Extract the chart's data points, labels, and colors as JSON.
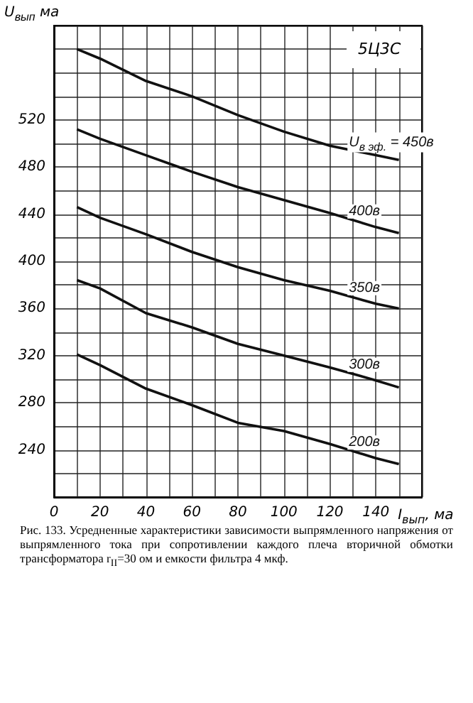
{
  "chart_data": {
    "type": "line",
    "xlabel": "I$_{вып}$, ма",
    "ylabel": "U$_{вып}$ ма",
    "x": [
      10,
      20,
      40,
      60,
      80,
      100,
      120,
      140,
      150
    ],
    "series": [
      {
        "name": "U$_{в эф.}$ = 450в",
        "color": "#111111",
        "values": [
          580,
          572,
          553,
          540,
          524,
          510,
          498,
          490,
          486
        ]
      },
      {
        "name": "400в",
        "color": "#111111",
        "values": [
          512,
          504,
          490,
          476,
          463,
          452,
          441,
          429,
          424
        ]
      },
      {
        "name": "350в",
        "color": "#111111",
        "values": [
          446,
          437,
          423,
          408,
          395,
          384,
          375,
          364,
          360
        ]
      },
      {
        "name": "300в",
        "color": "#111111",
        "values": [
          384,
          377,
          356,
          344,
          330,
          320,
          310,
          299,
          293
        ]
      },
      {
        "name": "200в",
        "color": "#111111",
        "values": [
          321,
          312,
          292,
          278,
          263,
          256,
          245,
          233,
          228
        ]
      }
    ],
    "xlim": [
      0,
      160
    ],
    "xticks": [
      0,
      {
        "value": 10,
        "label": null
      },
      20,
      {
        "value": 30,
        "label": null
      },
      40,
      {
        "value": 50,
        "label": null
      },
      60,
      {
        "value": 70,
        "label": null
      },
      80,
      {
        "value": 90,
        "label": null
      },
      100,
      {
        "value": 110,
        "label": null
      },
      120,
      {
        "value": 130,
        "label": null
      },
      140,
      {
        "value": 150,
        "label": null
      },
      {
        "value": 160,
        "label": null
      }
    ],
    "ylim": [
      200,
      600
    ],
    "yticks": [
      {
        "value": 200,
        "label": null
      },
      {
        "value": 220,
        "label": null
      },
      240,
      {
        "value": 260,
        "label": null
      },
      280,
      {
        "value": 300,
        "label": null
      },
      320,
      {
        "value": 340,
        "label": null
      },
      360,
      {
        "value": 380,
        "label": null
      },
      400,
      {
        "value": 420,
        "label": null
      },
      440,
      {
        "value": 460,
        "label": null
      },
      480,
      {
        "value": 500,
        "label": null
      },
      520,
      {
        "value": 540,
        "label": null
      },
      {
        "value": 560,
        "label": null
      },
      {
        "value": 580,
        "label": null
      },
      {
        "value": 600,
        "label": null
      }
    ],
    "grid": true,
    "legend": false,
    "marker": "none",
    "line_style": "solid",
    "annotations": [
      "5Ц3С",
      "Рис. 133. Усредненные характеристики зависимости выпрямленного напряжения от выпрямленного тока при сопротивлении каждого плеча вторичной обмотки трансформатора r$_{II}$=30 ом и емкости фильтра 4 мкф."
    ]
  }
}
